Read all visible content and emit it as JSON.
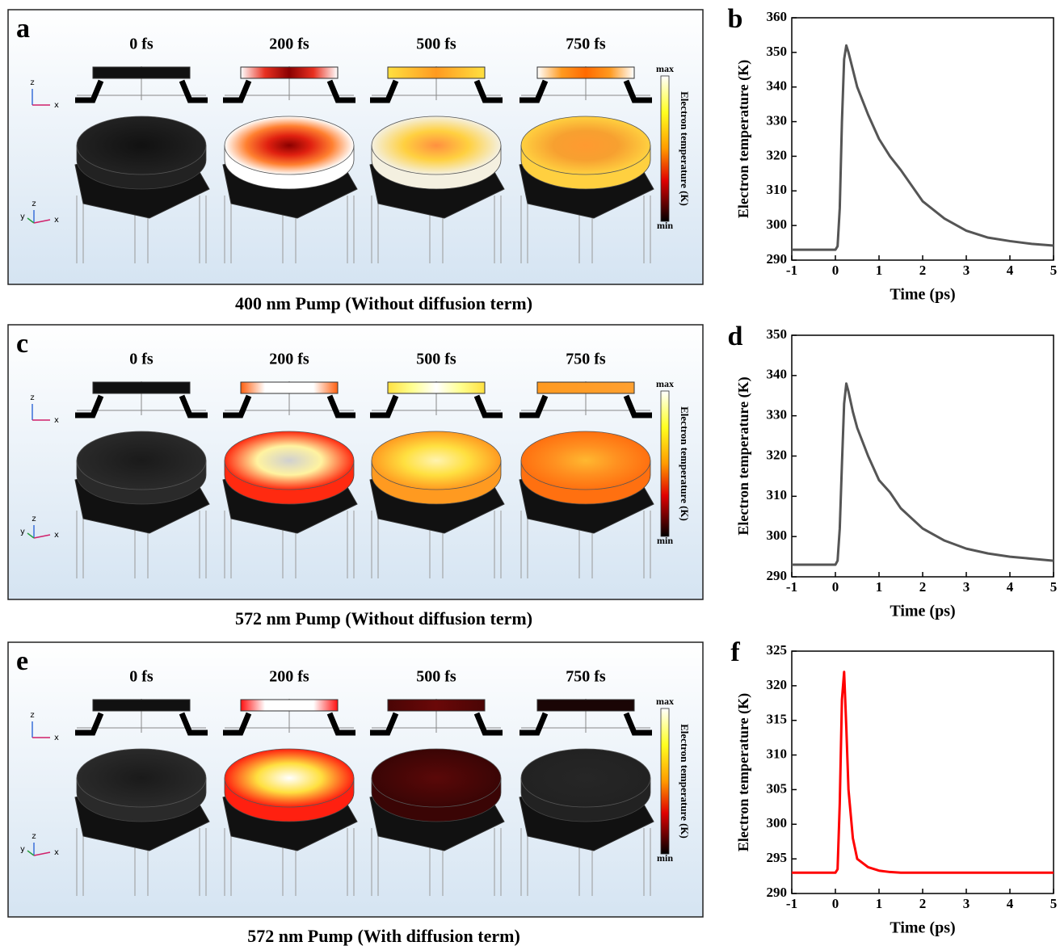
{
  "simulation_panels": [
    {
      "letter": "a",
      "times": [
        "0 fs",
        "200 fs",
        "500 fs",
        "750 fs"
      ],
      "colorbar": {
        "max": "max",
        "min": "min",
        "label": "Electron temperature (K)"
      },
      "axes_2d": [
        "z",
        "x"
      ],
      "axes_3d": [
        "y",
        "z",
        "x"
      ],
      "caption": "400 nm Pump (Without diffusion term)"
    },
    {
      "letter": "c",
      "times": [
        "0 fs",
        "200 fs",
        "500 fs",
        "750 fs"
      ],
      "colorbar": {
        "max": "max",
        "min": "min",
        "label": "Electron temperature (K)"
      },
      "axes_2d": [
        "z",
        "x"
      ],
      "axes_3d": [
        "y",
        "z",
        "x"
      ],
      "caption": "572 nm Pump (Without diffusion term)"
    },
    {
      "letter": "e",
      "times": [
        "0 fs",
        "200 fs",
        "500 fs",
        "750 fs"
      ],
      "colorbar": {
        "max": "max",
        "min": "min",
        "label": "Electron temperature (K)"
      },
      "axes_2d": [
        "z",
        "x"
      ],
      "axes_3d": [
        "y",
        "z",
        "x"
      ],
      "caption": "572 nm Pump (With diffusion term)"
    }
  ],
  "chart_data": [
    {
      "type": "line",
      "panel_label": "b",
      "xlabel": "Time (ps)",
      "ylabel": "Electron temperature (K)",
      "x": [
        -1,
        0,
        0.05,
        0.1,
        0.15,
        0.2,
        0.25,
        0.3,
        0.4,
        0.5,
        0.75,
        1,
        1.25,
        1.5,
        2,
        2.5,
        3,
        3.5,
        4,
        4.5,
        5
      ],
      "series": [
        {
          "color": "#555555",
          "values": [
            293,
            293,
            294,
            305,
            330,
            348,
            352,
            350,
            345,
            340,
            332,
            325,
            320,
            316,
            307,
            302,
            298.5,
            296.5,
            295.5,
            294.7,
            294.2
          ]
        }
      ],
      "xlim": [
        -1,
        5
      ],
      "xticks": [
        -1,
        0,
        1,
        2,
        3,
        4,
        5
      ],
      "ylim": [
        290,
        360
      ],
      "yticks": [
        290,
        300,
        310,
        320,
        330,
        340,
        350,
        360
      ]
    },
    {
      "type": "line",
      "panel_label": "d",
      "xlabel": "Time (ps)",
      "ylabel": "Electron temperature (K)",
      "x": [
        -1,
        0,
        0.05,
        0.1,
        0.15,
        0.2,
        0.25,
        0.3,
        0.4,
        0.5,
        0.75,
        1,
        1.25,
        1.5,
        2,
        2.5,
        3,
        3.5,
        4,
        4.5,
        5
      ],
      "series": [
        {
          "color": "#555555",
          "values": [
            293,
            293,
            294,
            302,
            318,
            333,
            338,
            336,
            331,
            327,
            320,
            314,
            311,
            307,
            302,
            299,
            297,
            295.8,
            295,
            294.5,
            294
          ]
        }
      ],
      "xlim": [
        -1,
        5
      ],
      "xticks": [
        -1,
        0,
        1,
        2,
        3,
        4,
        5
      ],
      "ylim": [
        290,
        350
      ],
      "yticks": [
        290,
        300,
        310,
        320,
        330,
        340,
        350
      ]
    },
    {
      "type": "line",
      "panel_label": "f",
      "xlabel": "Time (ps)",
      "ylabel": "Electron temperature (K)",
      "x": [
        -1,
        0,
        0.05,
        0.1,
        0.15,
        0.2,
        0.25,
        0.3,
        0.4,
        0.5,
        0.75,
        1,
        1.25,
        1.5,
        2,
        2.5,
        3,
        3.5,
        4,
        4.5,
        5
      ],
      "series": [
        {
          "color": "#ff0000",
          "values": [
            293,
            293,
            293.5,
            303,
            318,
            322,
            314,
            305,
            298,
            295,
            293.8,
            293.3,
            293.1,
            293,
            293,
            293,
            293,
            293,
            293,
            293,
            293
          ]
        }
      ],
      "xlim": [
        -1,
        5
      ],
      "xticks": [
        -1,
        0,
        1,
        2,
        3,
        4,
        5
      ],
      "ylim": [
        290,
        325
      ],
      "yticks": [
        290,
        295,
        300,
        305,
        310,
        315,
        320,
        325
      ]
    }
  ]
}
